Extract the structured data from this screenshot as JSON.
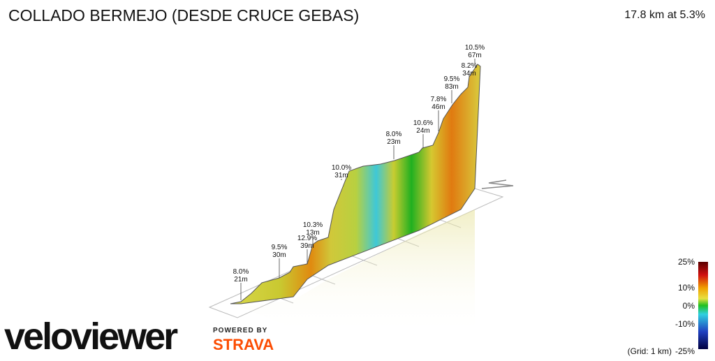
{
  "header": {
    "title": "COLLADO BERMEJO (DESDE CRUCE GEBAS)",
    "summary": "17.8 km at 5.3%"
  },
  "annotations": [
    {
      "grade": "8.0%",
      "length": "21m"
    },
    {
      "grade": "9.5%",
      "length": "30m"
    },
    {
      "grade": "12.9%",
      "length": "39m"
    },
    {
      "grade": "10.3%",
      "length": "13m"
    },
    {
      "grade": "10.0%",
      "length": "31m"
    },
    {
      "grade": "8.0%",
      "length": "23m"
    },
    {
      "grade": "10.6%",
      "length": "24m"
    },
    {
      "grade": "7.8%",
      "length": "46m"
    },
    {
      "grade": "9.5%",
      "length": "83m"
    },
    {
      "grade": "8.2%",
      "length": "34m"
    },
    {
      "grade": "10.5%",
      "length": "67m"
    }
  ],
  "legend": {
    "labels": [
      "25%",
      "10%",
      "0%",
      "-10%",
      "-25%"
    ],
    "grid_note": "(Grid: 1 km)"
  },
  "branding": {
    "logo": "veloviewer",
    "powered": "POWERED BY",
    "partner": "STRAVA"
  }
}
